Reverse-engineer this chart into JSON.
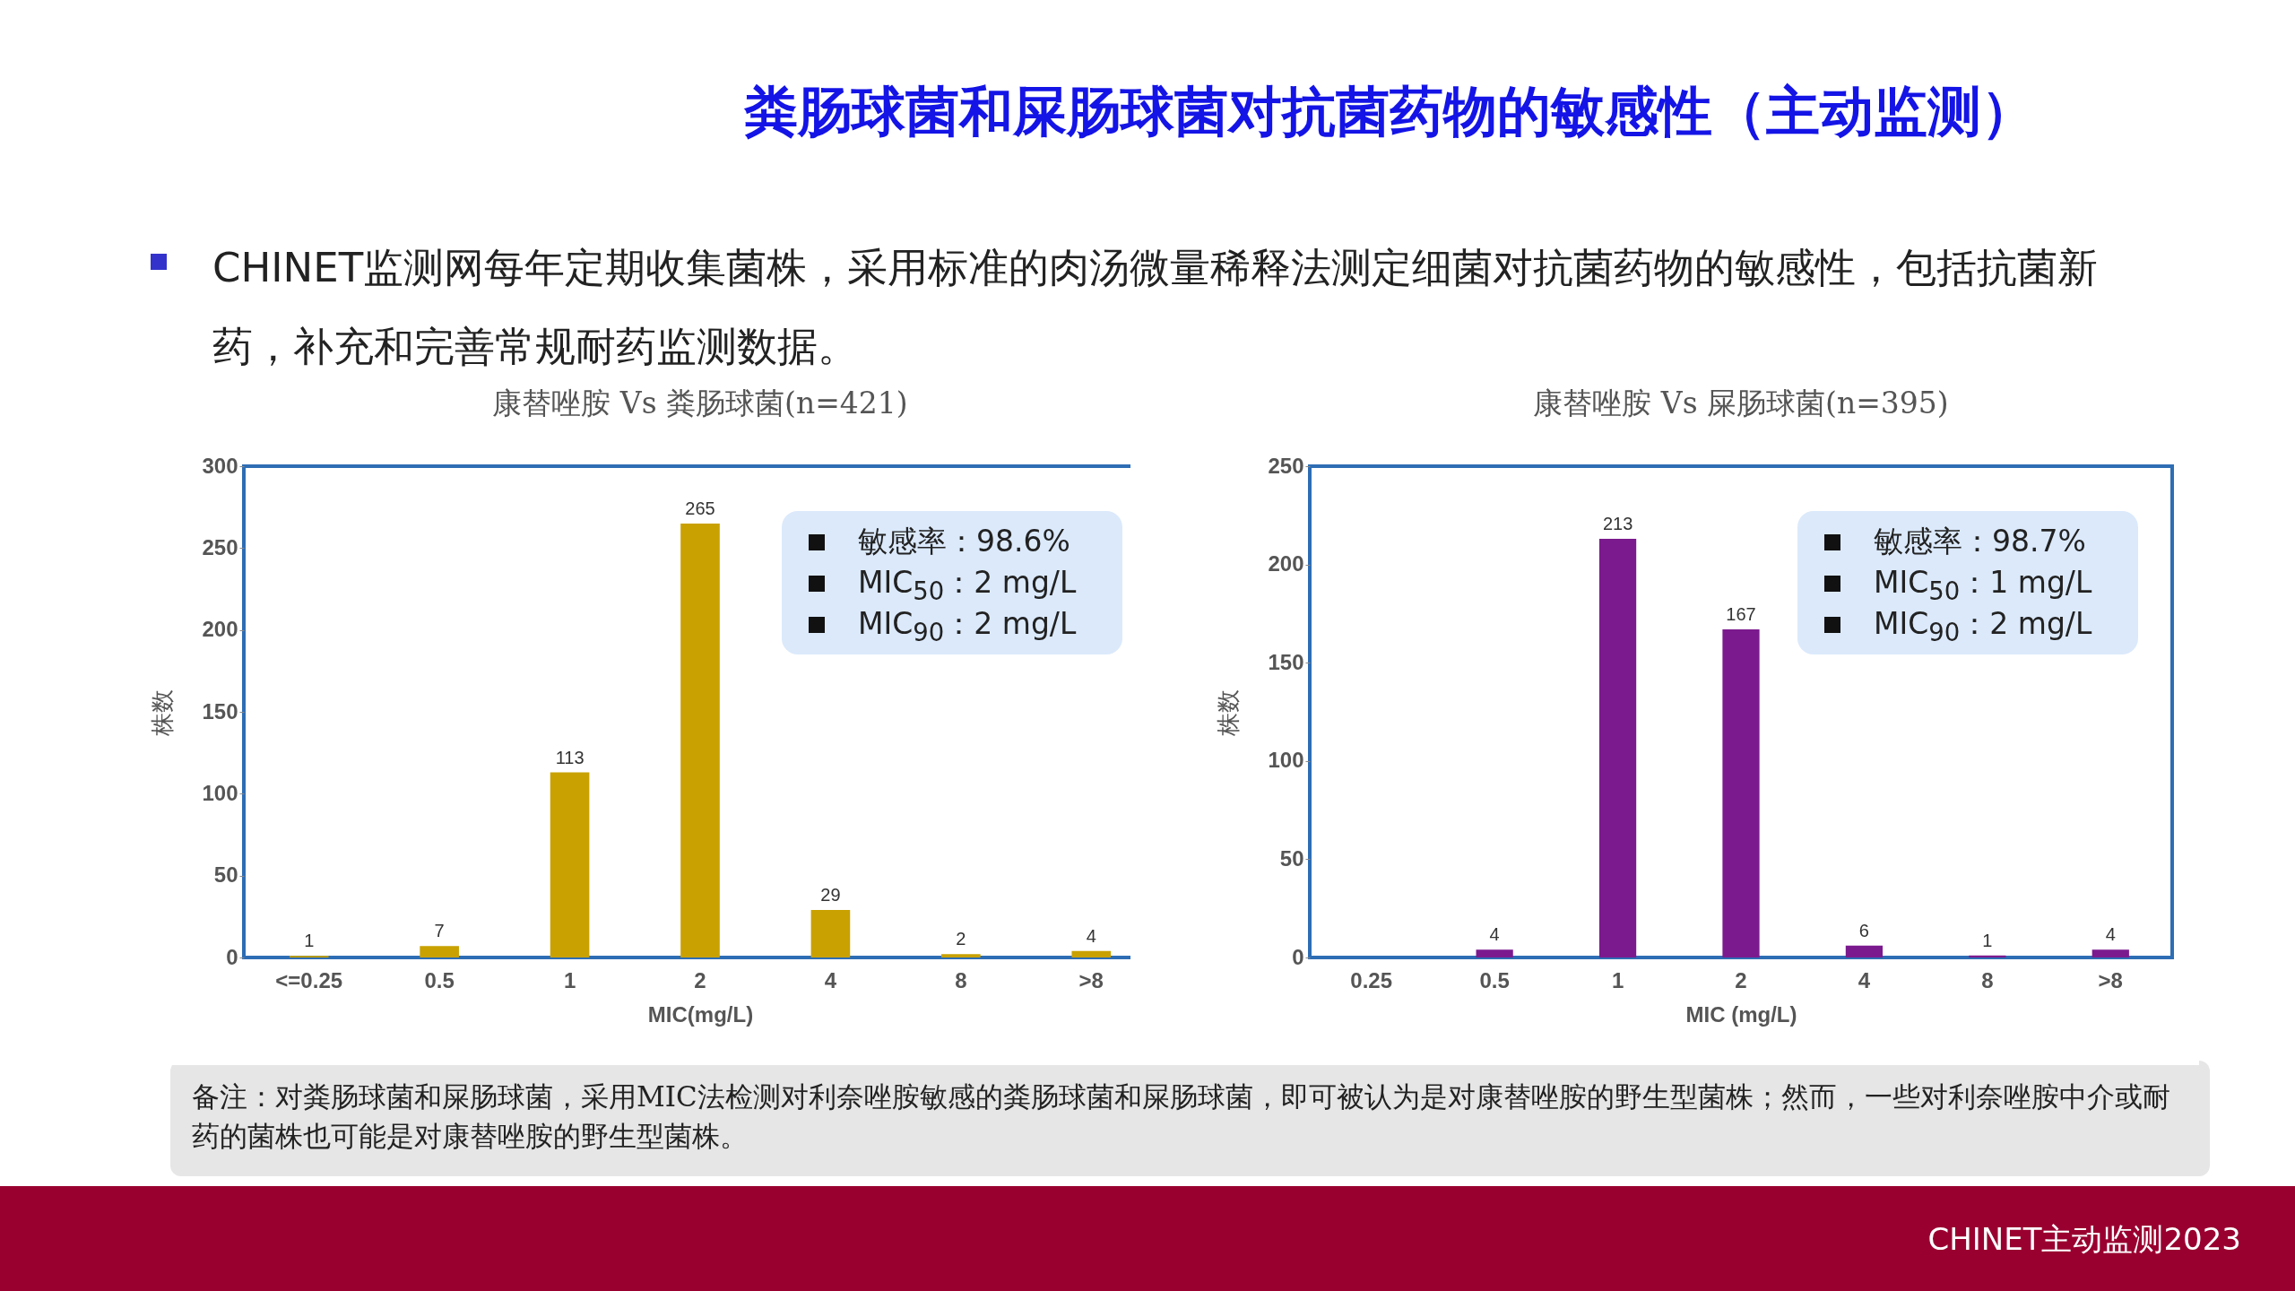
{
  "chart_data": [
    {
      "type": "bar",
      "title": "康替唑胺  Vs  粪肠球菌(n=421)",
      "xlabel": "MIC(mg/L)",
      "ylabel": "株数",
      "categories": [
        "<=0.25",
        "0.5",
        "1",
        "2",
        "4",
        "8",
        ">8"
      ],
      "values": [
        1,
        7,
        113,
        265,
        29,
        2,
        4
      ],
      "color": "#c9a100",
      "ylim": [
        0,
        300
      ],
      "yticks": [
        0,
        50,
        100,
        150,
        200,
        250,
        300
      ],
      "grid": false,
      "data_labels": true,
      "annotations": [
        "粪肠球菌和屎肠球菌对抗菌药物的敏感性（主动监测）",
        "CHINET监测网每年定期收集菌株，采用标准的肉汤微量稀释法测定细菌对抗菌药物的敏感性，包括抗菌新药，补充和完善常规耐药监测数据。",
        "敏感率：98.6%",
        "MIC$_{50}$：2 mg/L",
        "MIC$_{90}$：2 mg/L",
        "备注：对粪肠球菌和屎肠球菌，采用MIC法检测对利奈唑胺敏感的粪肠球菌和屎肠球菌，即可被认为是对康替唑胺的野生型菌株；然而，一些对利奈唑胺中介或耐药的菌株也可能是对康替唑胺的野生型菌株。",
        "CHINET主动监测2023"
      ]
    },
    {
      "type": "bar",
      "title": "康替唑胺  Vs  屎肠球菌(n=395)",
      "xlabel": "MIC (mg/L)",
      "ylabel": "株数",
      "categories": [
        "0.25",
        "0.5",
        "1",
        "2",
        "4",
        "8",
        ">8"
      ],
      "values": [
        null,
        4,
        213,
        167,
        6,
        1,
        4
      ],
      "color": "#7b1a8e",
      "ylim": [
        0,
        250
      ],
      "yticks": [
        0,
        50,
        100,
        150,
        200,
        250
      ],
      "grid": false,
      "data_labels": true,
      "annotations": [
        "敏感率：98.7%",
        "MIC$_{50}$：1 mg/L",
        "MIC$_{90}$：2 mg/L"
      ]
    }
  ]
}
